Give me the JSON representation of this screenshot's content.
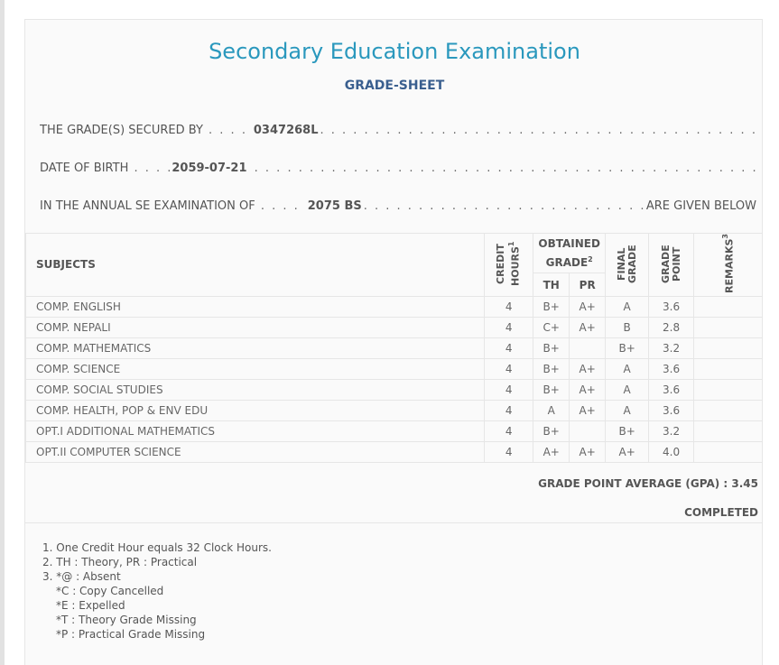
{
  "header": {
    "title": "Secondary Education Examination",
    "subtitle": "GRADE-SHEET"
  },
  "info": {
    "secured_label": "THE GRADE(S) SECURED BY",
    "symbol_no": "0347268L",
    "dob_label": "DATE OF BIRTH",
    "dob": "2059-07-21",
    "exam_label": "IN THE ANNUAL SE EXAMINATION OF",
    "exam_year": "2075 BS",
    "exam_tail": "ARE GIVEN BELOW"
  },
  "table": {
    "headers": {
      "subjects": "SUBJECTS",
      "credit_hours": "CREDIT HOURS",
      "credit_sup": "1",
      "obtained_grade": "OBTAINED GRADE",
      "obtained_sup": "2",
      "th": "TH",
      "pr": "PR",
      "final_grade": "FINAL GRADE",
      "grade_point": "GRADE POINT",
      "remarks": "REMARKS",
      "remarks_sup": "3"
    },
    "rows": [
      {
        "subject": "COMP. ENGLISH",
        "credit": "4",
        "th": "B+",
        "pr": "A+",
        "final": "A",
        "gp": "3.6",
        "remarks": ""
      },
      {
        "subject": "COMP. NEPALI",
        "credit": "4",
        "th": "C+",
        "pr": "A+",
        "final": "B",
        "gp": "2.8",
        "remarks": ""
      },
      {
        "subject": "COMP. MATHEMATICS",
        "credit": "4",
        "th": "B+",
        "pr": "",
        "final": "B+",
        "gp": "3.2",
        "remarks": ""
      },
      {
        "subject": "COMP. SCIENCE",
        "credit": "4",
        "th": "B+",
        "pr": "A+",
        "final": "A",
        "gp": "3.6",
        "remarks": ""
      },
      {
        "subject": "COMP. SOCIAL STUDIES",
        "credit": "4",
        "th": "B+",
        "pr": "A+",
        "final": "A",
        "gp": "3.6",
        "remarks": ""
      },
      {
        "subject": "COMP. HEALTH, POP & ENV EDU",
        "credit": "4",
        "th": "A",
        "pr": "A+",
        "final": "A",
        "gp": "3.6",
        "remarks": ""
      },
      {
        "subject": "OPT.I ADDITIONAL MATHEMATICS",
        "credit": "4",
        "th": "B+",
        "pr": "",
        "final": "B+",
        "gp": "3.2",
        "remarks": ""
      },
      {
        "subject": "OPT.II COMPUTER SCIENCE",
        "credit": "4",
        "th": "A+",
        "pr": "A+",
        "final": "A+",
        "gp": "4.0",
        "remarks": ""
      }
    ]
  },
  "summary": {
    "gpa": "GRADE POINT AVERAGE (GPA) : 3.45",
    "status": "COMPLETED"
  },
  "notes": [
    "1. One Credit Hour equals 32 Clock Hours.",
    "2. TH : Theory, PR : Practical",
    "3. *@ : Absent",
    "*C : Copy Cancelled",
    "*E : Expelled",
    "*T : Theory Grade Missing",
    "*P : Practical Grade Missing"
  ]
}
